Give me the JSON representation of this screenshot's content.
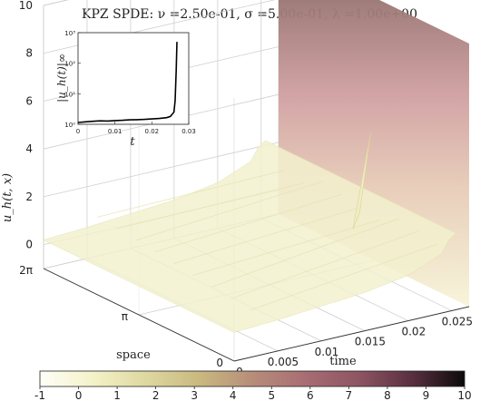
{
  "title": "KPZ SPDE: ν =2.50e-01, σ =5.00e-01, λ =1.00e+00",
  "chart_data": {
    "type": "surface",
    "zlabel": "u_h(t, x)",
    "xlabel": "time",
    "ylabel": "space",
    "time_ticks": [
      "0",
      "0.005",
      "0.01",
      "0.015",
      "0.02",
      "0.025"
    ],
    "time_tick_values": [
      0,
      0.005,
      0.01,
      0.015,
      0.02,
      0.025
    ],
    "space_ticks": [
      "0",
      "π",
      "2π"
    ],
    "z_ticks": [
      "0",
      "2",
      "4",
      "6",
      "8",
      "10"
    ],
    "z_tick_values": [
      0,
      2,
      4,
      6,
      8,
      10
    ],
    "zlim": [
      -1,
      10
    ],
    "time_range": [
      0,
      0.027
    ],
    "grid": true,
    "colorbar": {
      "ticks": [
        "-1",
        "0",
        "1",
        "2",
        "3",
        "4",
        "5",
        "6",
        "7",
        "8",
        "9",
        "10"
      ],
      "range": [
        -1,
        10
      ],
      "colors": [
        "#fefef8",
        "#f4f2c8",
        "#ded8a0",
        "#c9b97f",
        "#b78d7a",
        "#a86d73",
        "#8e5563",
        "#5a3040",
        "#0c0a0a"
      ]
    },
    "surface_profile": {
      "t": [
        0,
        0.005,
        0.01,
        0.015,
        0.02,
        0.024,
        0.026,
        0.0268
      ],
      "u_mean": [
        0.2,
        0.3,
        0.45,
        0.6,
        0.9,
        1.5,
        3.0,
        10.0
      ]
    },
    "inset": {
      "type": "line",
      "ylabel": "|u_h(t)|∞",
      "xlabel": "t",
      "yscale": "log",
      "ylim": [
        1,
        1000
      ],
      "xlim": [
        0,
        0.03
      ],
      "x_ticks": [
        "0",
        "0.01",
        "0.02",
        "0.03"
      ],
      "x_tick_values": [
        0,
        0.01,
        0.02,
        0.03
      ],
      "y_ticks": [
        "10⁰",
        "10¹",
        "10²",
        "10³"
      ],
      "y_tick_values": [
        1,
        10,
        100,
        1000
      ],
      "x": [
        0,
        0.002,
        0.004,
        0.006,
        0.008,
        0.01,
        0.012,
        0.014,
        0.016,
        0.018,
        0.02,
        0.022,
        0.024,
        0.025,
        0.026,
        0.0263,
        0.0266,
        0.0268
      ],
      "y": [
        1.15,
        1.2,
        1.25,
        1.3,
        1.28,
        1.32,
        1.35,
        1.4,
        1.42,
        1.45,
        1.5,
        1.55,
        1.65,
        1.8,
        2.5,
        6,
        60,
        500
      ]
    }
  }
}
